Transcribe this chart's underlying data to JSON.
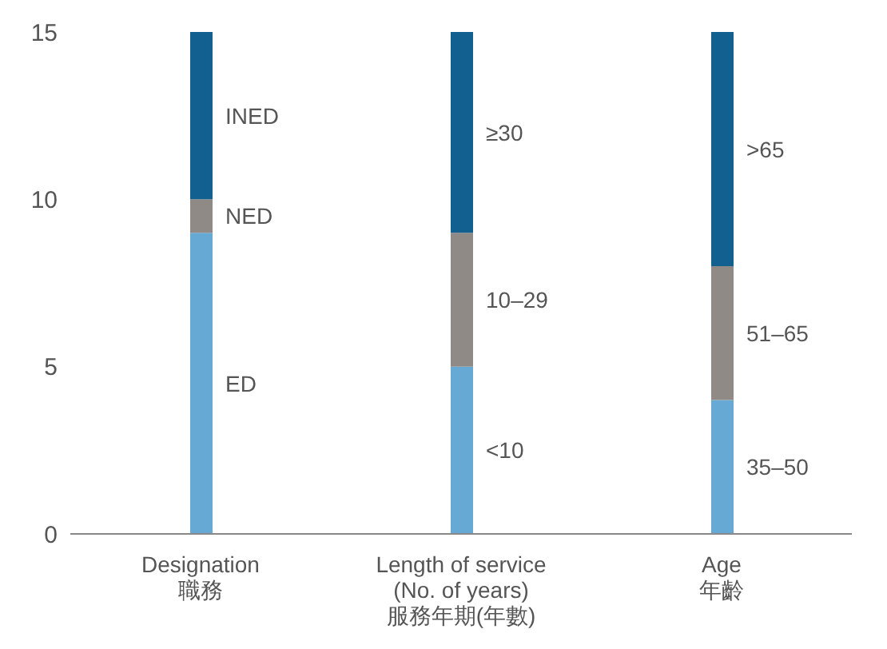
{
  "chart_data": {
    "type": "bar",
    "stacked": true,
    "categories": [
      "Designation\n職務",
      "Length of service\n(No. of years)\n服務年期(年數)",
      "Age\n年齡"
    ],
    "series": [
      {
        "name": "ED",
        "color": "#67a9d5",
        "values": [
          9,
          null,
          null
        ]
      },
      {
        "name": "NED",
        "color": "#8f8a86",
        "values": [
          1,
          null,
          null
        ]
      },
      {
        "name": "INED",
        "color": "#12608f",
        "values": [
          5,
          null,
          null
        ]
      },
      {
        "name": "<10",
        "color": "#67a9d5",
        "values": [
          null,
          5,
          null
        ]
      },
      {
        "name": "10–29",
        "color": "#8f8a86",
        "values": [
          null,
          4,
          null
        ]
      },
      {
        "name": "≥30",
        "color": "#12608f",
        "values": [
          null,
          6,
          null
        ]
      },
      {
        "name": "35–50",
        "color": "#67a9d5",
        "values": [
          null,
          null,
          4
        ]
      },
      {
        "name": "51–65",
        "color": "#8f8a86",
        "values": [
          null,
          null,
          4
        ]
      },
      {
        "name": ">65",
        "color": "#12608f",
        "values": [
          null,
          null,
          7
        ]
      }
    ],
    "ylim": [
      0,
      15
    ],
    "yticks": [
      0,
      5,
      10,
      15
    ],
    "grid": false,
    "legend": false
  }
}
